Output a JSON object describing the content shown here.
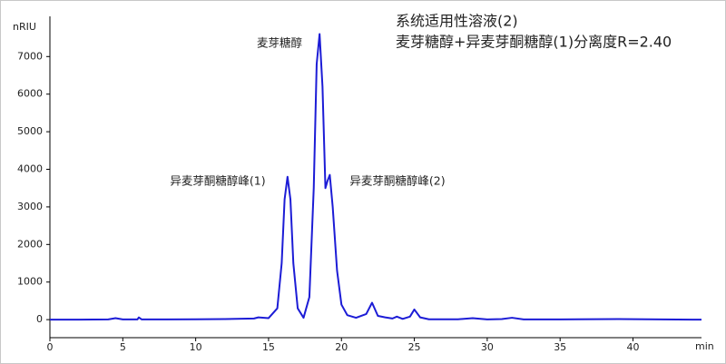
{
  "chart_data": {
    "type": "line",
    "title": "系统适用性溶液(2)",
    "subtitle": "麦芽糖醇+异麦芽酮糖醇(1)分离度R=2.40",
    "y_label": "nRIU",
    "x_label": "min",
    "annotations": [
      "麦芽糖醇",
      "异麦芽酮糖醇峰(1)",
      "异麦芽酮糖醇峰(2)"
    ],
    "x": [
      0,
      2,
      4,
      4.5,
      5,
      6,
      6.1,
      6.3,
      8,
      10,
      12,
      14,
      14.3,
      15,
      15.6,
      15.9,
      16.1,
      16.3,
      16.5,
      16.7,
      17,
      17.4,
      17.8,
      18.1,
      18.3,
      18.5,
      18.7,
      18.9,
      19.05,
      19.2,
      19.4,
      19.7,
      20.0,
      20.4,
      21,
      21.7,
      22.1,
      22.5,
      23,
      23.5,
      23.8,
      24.2,
      24.7,
      25.0,
      25.4,
      26,
      28,
      29,
      30,
      31,
      31.7,
      32.5,
      35,
      39,
      42,
      44.7
    ],
    "series": [
      {
        "color": "#1c1cd6",
        "values": [
          0,
          0,
          5,
          40,
          5,
          5,
          60,
          5,
          5,
          10,
          15,
          30,
          60,
          40,
          300,
          1500,
          3200,
          3800,
          3200,
          1500,
          300,
          50,
          600,
          3500,
          6800,
          7600,
          6200,
          3500,
          3700,
          3850,
          3000,
          1300,
          400,
          120,
          50,
          150,
          450,
          100,
          60,
          30,
          80,
          20,
          80,
          270,
          60,
          10,
          10,
          40,
          5,
          15,
          50,
          5,
          5,
          15,
          5,
          0
        ]
      }
    ],
    "xlim": [
      0,
      44.7
    ],
    "ylim": [
      -480,
      8070
    ],
    "xticks": [
      0,
      5,
      10,
      15,
      20,
      25,
      30,
      35,
      40
    ],
    "yticks": [
      0,
      1000,
      2000,
      3000,
      4000,
      5000,
      6000,
      7000
    ]
  }
}
